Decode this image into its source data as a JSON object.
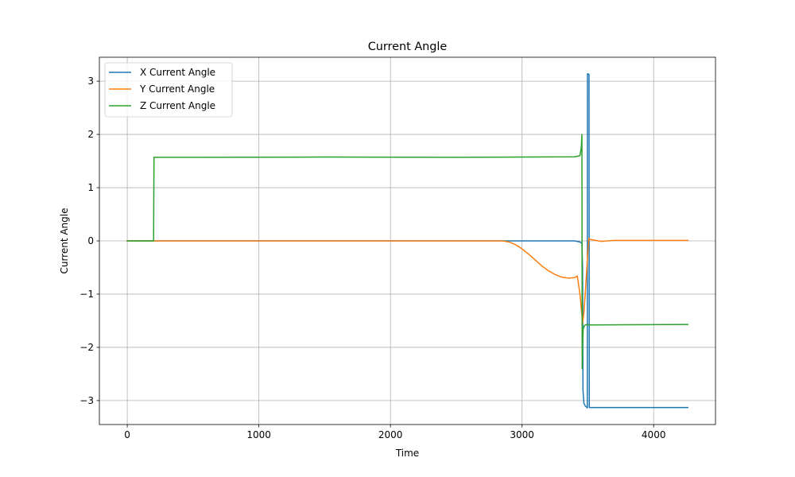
{
  "chart_data": {
    "type": "line",
    "title": "Current Angle",
    "xlabel": "Time",
    "ylabel": "Current Angle",
    "xlim": [
      -212,
      4470
    ],
    "ylim": [
      -3.45,
      3.45
    ],
    "x_ticks": [
      0,
      1000,
      2000,
      3000,
      4000
    ],
    "y_ticks": [
      3,
      2,
      1,
      0,
      -1,
      -2,
      -3
    ],
    "x_tick_labels": [
      "0",
      "1000",
      "2000",
      "3000",
      "4000"
    ],
    "y_tick_labels": [
      "3",
      "2",
      "1",
      "0",
      "−1",
      "−2",
      "−3"
    ],
    "grid": true,
    "legend_position": "top-left",
    "series": [
      {
        "name": "X Current Angle",
        "color": "#1f77b4",
        "points": [
          [
            0,
            0
          ],
          [
            3400,
            0
          ],
          [
            3440,
            -0.02
          ],
          [
            3455,
            -0.05
          ],
          [
            3460,
            -0.5
          ],
          [
            3463,
            -2.8
          ],
          [
            3470,
            -3.05
          ],
          [
            3480,
            -3.1
          ],
          [
            3490,
            -3.12
          ],
          [
            3496,
            -3.14
          ],
          [
            3497,
            3.14
          ],
          [
            3508,
            3.13
          ],
          [
            3509,
            3.12
          ],
          [
            3511,
            -3.13
          ],
          [
            4260,
            -3.13
          ]
        ]
      },
      {
        "name": "Y Current Angle",
        "color": "#ff7f0e",
        "points": [
          [
            0,
            0
          ],
          [
            2850,
            0
          ],
          [
            2900,
            -0.02
          ],
          [
            2950,
            -0.07
          ],
          [
            3000,
            -0.15
          ],
          [
            3050,
            -0.25
          ],
          [
            3100,
            -0.36
          ],
          [
            3150,
            -0.47
          ],
          [
            3200,
            -0.56
          ],
          [
            3250,
            -0.63
          ],
          [
            3300,
            -0.68
          ],
          [
            3350,
            -0.7
          ],
          [
            3400,
            -0.69
          ],
          [
            3420,
            -0.66
          ],
          [
            3440,
            -1.0
          ],
          [
            3455,
            -1.4
          ],
          [
            3460,
            -1.55
          ],
          [
            3470,
            -1.35
          ],
          [
            3480,
            -1.0
          ],
          [
            3490,
            -0.6
          ],
          [
            3500,
            -0.2
          ],
          [
            3508,
            0.05
          ],
          [
            3512,
            0.03
          ],
          [
            3560,
            0.01
          ],
          [
            3600,
            -0.01
          ],
          [
            3650,
            0.0
          ],
          [
            3700,
            0.01
          ],
          [
            4260,
            0.01
          ]
        ]
      },
      {
        "name": "Z Current Angle",
        "color": "#2ca02c",
        "points": [
          [
            0,
            0
          ],
          [
            200,
            0
          ],
          [
            203,
            1.57
          ],
          [
            600,
            1.57
          ],
          [
            1500,
            1.575
          ],
          [
            2500,
            1.57
          ],
          [
            3400,
            1.58
          ],
          [
            3440,
            1.6
          ],
          [
            3450,
            1.75
          ],
          [
            3455,
            2.0
          ],
          [
            3457,
            -2.4
          ],
          [
            3460,
            -1.9
          ],
          [
            3465,
            -1.65
          ],
          [
            3475,
            -1.59
          ],
          [
            3490,
            -1.57
          ],
          [
            3520,
            -1.58
          ],
          [
            4260,
            -1.57
          ]
        ]
      }
    ]
  }
}
